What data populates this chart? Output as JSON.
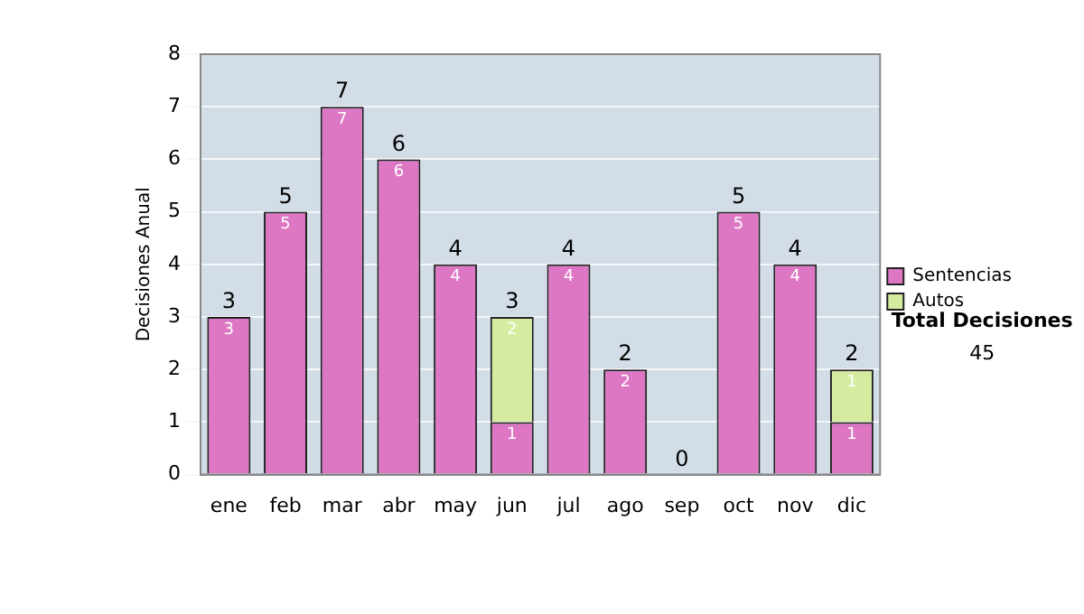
{
  "chart_data": {
    "type": "bar",
    "ylabel": "Decisiones Anual",
    "categories": [
      "ene",
      "feb",
      "mar",
      "abr",
      "may",
      "jun",
      "jul",
      "ago",
      "sep",
      "oct",
      "nov",
      "dic"
    ],
    "series": [
      {
        "name": "Sentencias",
        "color": "#dd77c4",
        "values": [
          3,
          5,
          7,
          6,
          4,
          1,
          4,
          2,
          0,
          5,
          4,
          1
        ],
        "value_labels": [
          "3",
          "5",
          "7",
          "6",
          "4",
          "1",
          "4",
          "2",
          null,
          "5",
          "4",
          "1"
        ]
      },
      {
        "name": "Autos",
        "color": "#d4eba0",
        "values": [
          0,
          0,
          0,
          0,
          0,
          2,
          0,
          0,
          0,
          0,
          0,
          1
        ],
        "value_labels": [
          null,
          null,
          null,
          null,
          null,
          "2",
          null,
          null,
          null,
          null,
          null,
          "1"
        ]
      }
    ],
    "stacked": true,
    "totals": [
      "3",
      "5",
      "7",
      "6",
      "4",
      "3",
      "4",
      "2",
      "0",
      "5",
      "4",
      "2"
    ],
    "ylim": [
      0,
      8
    ],
    "yticks": [
      0,
      1,
      2,
      3,
      4,
      5,
      6,
      7,
      8
    ],
    "grid": "y",
    "legend": "right",
    "annotations": [
      "Total Decisiones",
      "45"
    ]
  }
}
